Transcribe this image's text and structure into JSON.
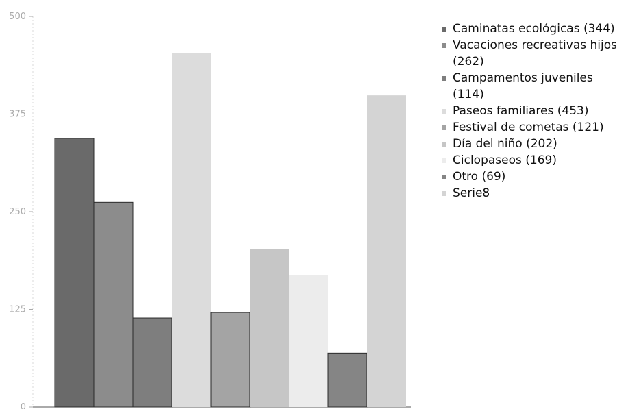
{
  "chart_data": {
    "type": "bar",
    "title": "",
    "xlabel": "",
    "ylabel": "",
    "ylim": [
      0,
      500
    ],
    "yticks": [
      0,
      125,
      250,
      375,
      500
    ],
    "grid": false,
    "legend_position": "right",
    "series": [
      {
        "name": "Caminatas ecológicas (344)",
        "value": 344,
        "color": "#6a6a6a"
      },
      {
        "name": "Vacaciones recreativas hijos (262)",
        "value": 262,
        "color": "#8c8c8c"
      },
      {
        "name": "Campamentos juveniles (114)",
        "value": 114,
        "color": "#7e7e7e"
      },
      {
        "name": "Paseos familiares (453)",
        "value": 453,
        "color": "#dcdcdc"
      },
      {
        "name": "Festival de cometas (121)",
        "value": 121,
        "color": "#a4a4a4"
      },
      {
        "name": "Día del niño (202)",
        "value": 202,
        "color": "#c6c6c6"
      },
      {
        "name": "Ciclopaseos (169)",
        "value": 169,
        "color": "#ececec"
      },
      {
        "name": "Otro (69)",
        "value": 69,
        "color": "#858585"
      },
      {
        "name": "Serie8",
        "value": 399,
        "color": "#d4d4d4"
      }
    ]
  }
}
